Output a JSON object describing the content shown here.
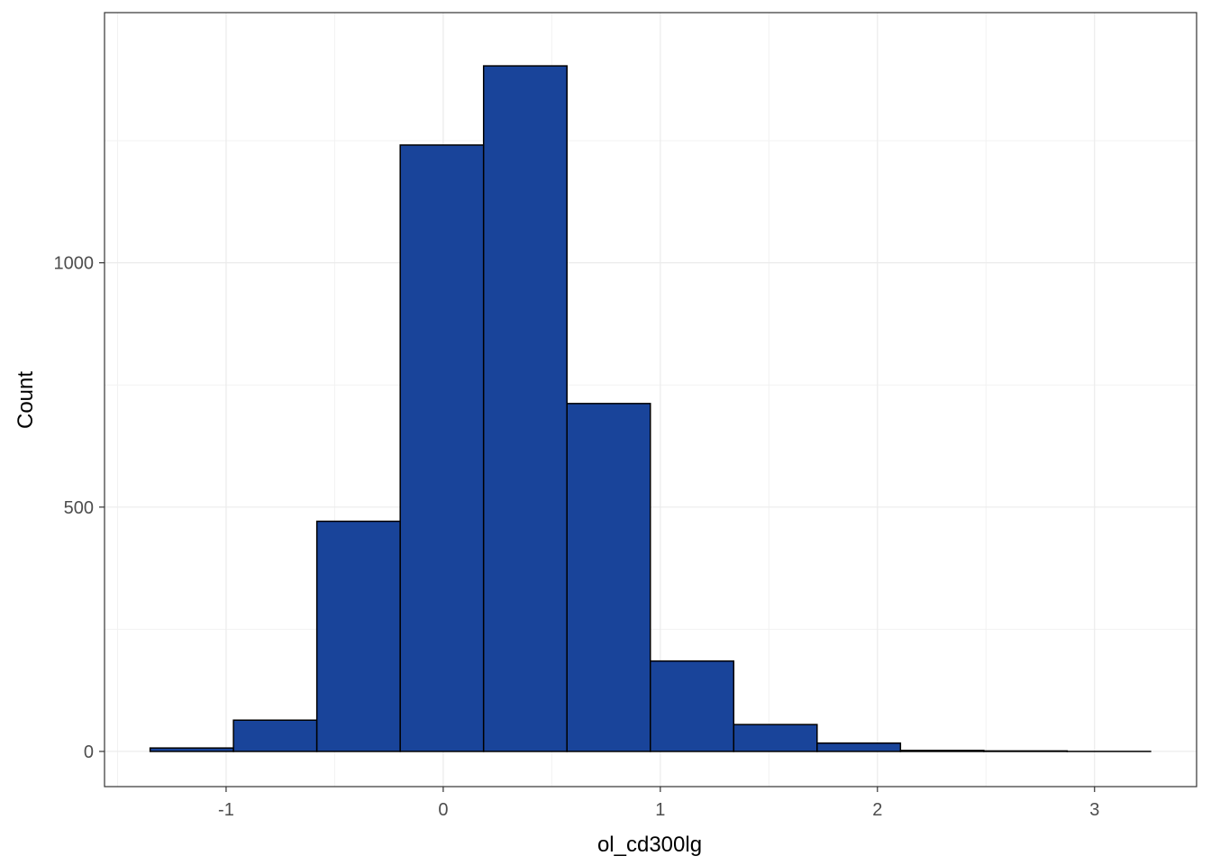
{
  "chart_data": {
    "type": "bar",
    "subtype": "histogram",
    "title": "",
    "xlabel": "ol_cd300lg",
    "ylabel": "Count",
    "xlim": [
      -1.56,
      3.47
    ],
    "ylim": [
      -72,
      1512
    ],
    "x_ticks": [
      -1,
      0,
      1,
      2,
      3
    ],
    "y_ticks": [
      0,
      500,
      1000
    ],
    "grid": true,
    "legend": "none",
    "bin_edges": [
      -1.35,
      -0.966,
      -0.582,
      -0.198,
      0.186,
      0.57,
      0.954,
      1.338,
      1.722,
      2.106,
      2.49,
      2.874,
      3.258
    ],
    "values": [
      7,
      64,
      471,
      1241,
      1403,
      712,
      185,
      55,
      17,
      2,
      1,
      0
    ],
    "colors": {
      "bar_fill": "#19449A",
      "bar_stroke": "#000000",
      "grid_major": "#ebebeb",
      "grid_minor": "#f2f2f2",
      "panel_border": "#333333"
    }
  }
}
